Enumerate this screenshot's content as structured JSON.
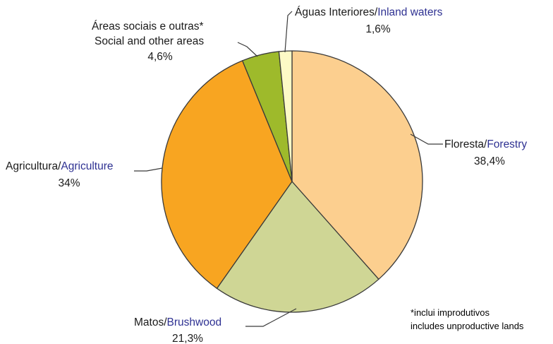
{
  "chart_data": {
    "type": "pie",
    "start_angle_deg": 0,
    "direction": "clockwise",
    "slices": [
      {
        "key": "forestry",
        "label_pt": "Floresta/",
        "label_en": "Forestry",
        "value": 38.4,
        "value_label": "38,4%",
        "color": "#fccf8f"
      },
      {
        "key": "brushwood",
        "label_pt": "Matos/",
        "label_en": "Brushwood",
        "value": 21.3,
        "value_label": "21,3%",
        "color": "#cfd695"
      },
      {
        "key": "agriculture",
        "label_pt": "Agricultura/",
        "label_en": "Agriculture",
        "value": 34,
        "value_label": "34%",
        "color": "#f8a521"
      },
      {
        "key": "social",
        "label_pt": "Áreas sociais e outras*",
        "label_en": "Social and other areas",
        "value": 4.6,
        "value_label": "4,6%",
        "color": "#9eba2b"
      },
      {
        "key": "waters",
        "label_pt": "Águas Interiores/",
        "label_en": "Inland waters",
        "value": 1.6,
        "value_label": "1,6%",
        "color": "#fdfac6"
      }
    ],
    "footnote_pt": "*inclui improdutivos",
    "footnote_en": "includes unproductive lands"
  }
}
